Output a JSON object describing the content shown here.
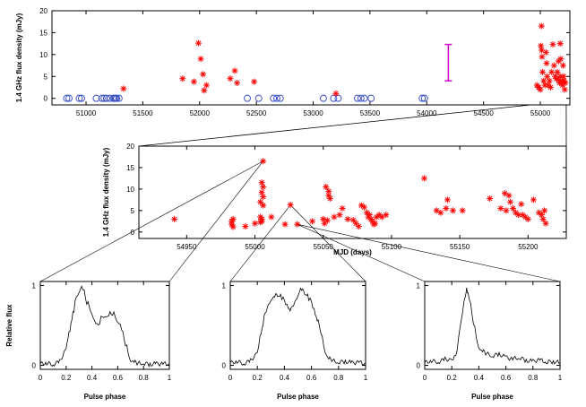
{
  "chart_data": [
    {
      "id": "top",
      "type": "scatter",
      "title": "",
      "xlabel": "",
      "ylabel": "1.4 GHz flux density (mJy)",
      "xlim": [
        50700,
        55260
      ],
      "ylim": [
        -1.5,
        20
      ],
      "xticks": [
        51000,
        51500,
        52000,
        52500,
        53000,
        53500,
        54000,
        54500,
        55000
      ],
      "yticks": [
        0,
        5,
        10,
        15,
        20
      ],
      "non_detections": [
        50830,
        50850,
        50940,
        50960,
        51090,
        51140,
        51160,
        51180,
        51210,
        51240,
        51250,
        51260,
        51270,
        51290,
        52420,
        52520,
        52650,
        52680,
        52710,
        53090,
        53180,
        53220,
        53390,
        53420,
        53450,
        53510,
        53960,
        53980
      ],
      "detections": [
        [
          51330,
          2.2
        ],
        [
          51850,
          4.5
        ],
        [
          51950,
          3.8
        ],
        [
          51990,
          12.6
        ],
        [
          52010,
          9.0
        ],
        [
          52030,
          5.5
        ],
        [
          52040,
          1.8
        ],
        [
          52060,
          3.0
        ],
        [
          52270,
          4.5
        ],
        [
          52310,
          6.3
        ],
        [
          52330,
          3.5
        ],
        [
          52480,
          3.8
        ],
        [
          53200,
          1.1
        ],
        [
          54970,
          3.0
        ],
        [
          54985,
          2.5
        ],
        [
          55000,
          2.0
        ],
        [
          55005,
          12.0
        ],
        [
          55010,
          16.5
        ],
        [
          55012,
          11.0
        ],
        [
          55015,
          9.5
        ],
        [
          55020,
          6.0
        ],
        [
          55030,
          4.0
        ],
        [
          55040,
          3.0
        ],
        [
          55050,
          10.5
        ],
        [
          55055,
          8.0
        ],
        [
          55060,
          5.0
        ],
        [
          55070,
          3.0
        ],
        [
          55080,
          4.0
        ],
        [
          55090,
          2.5
        ],
        [
          55100,
          6.0
        ],
        [
          55110,
          12.3
        ],
        [
          55120,
          7.5
        ],
        [
          55130,
          5.0
        ],
        [
          55140,
          4.5
        ],
        [
          55150,
          6.0
        ],
        [
          55160,
          8.5
        ],
        [
          55170,
          3.5
        ],
        [
          55175,
          5.0
        ],
        [
          55180,
          9.0
        ],
        [
          55190,
          4.0
        ],
        [
          55195,
          3.0
        ],
        [
          55200,
          7.5
        ],
        [
          55205,
          5.0
        ],
        [
          55210,
          4.0
        ],
        [
          55215,
          2.0
        ],
        [
          55220,
          3.5
        ],
        [
          55175,
          12.5
        ],
        [
          55160,
          4.2
        ]
      ],
      "error_bar": {
        "x": 54190,
        "low": 4.0,
        "high": 12.3
      }
    },
    {
      "id": "zoom",
      "type": "scatter",
      "title": "",
      "xlabel": "MJD (days)",
      "ylabel": "1.4 GHz flux density (mJy)",
      "xlim": [
        54915,
        55228
      ],
      "ylim": [
        -1.5,
        20
      ],
      "xticks": [
        54950,
        55000,
        55050,
        55100,
        55150,
        55200
      ],
      "yticks": [
        0,
        5,
        10,
        15,
        20
      ],
      "detections": [
        [
          54941,
          3.0
        ],
        [
          54983,
          2.5
        ],
        [
          54983,
          1.8
        ],
        [
          54984,
          3.0
        ],
        [
          54984,
          1.2
        ],
        [
          54993,
          1.3
        ],
        [
          55000,
          2.0
        ],
        [
          55004,
          3.5
        ],
        [
          55005,
          2.5
        ],
        [
          55006,
          16.5
        ],
        [
          55005,
          11.5
        ],
        [
          55006,
          10.5
        ],
        [
          55005,
          9.2
        ],
        [
          55006,
          8.2
        ],
        [
          55004,
          7.0
        ],
        [
          55006,
          6.2
        ],
        [
          55005,
          3.0
        ],
        [
          55004,
          2.3
        ],
        [
          55012,
          3.5
        ],
        [
          55022,
          1.8
        ],
        [
          55026,
          6.3
        ],
        [
          55031,
          1.8
        ],
        [
          55042,
          2.5
        ],
        [
          55050,
          3.0
        ],
        [
          55051,
          2.0
        ],
        [
          55052,
          10.5
        ],
        [
          55054,
          9.5
        ],
        [
          55054,
          8.5
        ],
        [
          55055,
          7.8
        ],
        [
          55053,
          2.7
        ],
        [
          55058,
          3.5
        ],
        [
          55062,
          4.0
        ],
        [
          55064,
          5.5
        ],
        [
          55068,
          3.0
        ],
        [
          55072,
          2.8
        ],
        [
          55074,
          2.0
        ],
        [
          55076,
          1.3
        ],
        [
          55078,
          6.2
        ],
        [
          55080,
          5.8
        ],
        [
          55082,
          4.5
        ],
        [
          55083,
          3.5
        ],
        [
          55084,
          4.0
        ],
        [
          55085,
          3.0
        ],
        [
          55086,
          2.5
        ],
        [
          55087,
          1.8
        ],
        [
          55088,
          2.0
        ],
        [
          55089,
          3.5
        ],
        [
          55091,
          4.0
        ],
        [
          55093,
          3.5
        ],
        [
          55096,
          4.0
        ],
        [
          55124,
          12.5
        ],
        [
          55133,
          5.0
        ],
        [
          55136,
          4.5
        ],
        [
          55140,
          5.5
        ],
        [
          55141,
          7.5
        ],
        [
          55145,
          5.0
        ],
        [
          55152,
          5.0
        ],
        [
          55172,
          7.8
        ],
        [
          55180,
          5.5
        ],
        [
          55183,
          9.0
        ],
        [
          55184,
          5.0
        ],
        [
          55186,
          8.5
        ],
        [
          55187,
          7.0
        ],
        [
          55189,
          5.5
        ],
        [
          55191,
          4.5
        ],
        [
          55193,
          4.0
        ],
        [
          55195,
          6.5
        ],
        [
          55196,
          4.0
        ],
        [
          55198,
          3.5
        ],
        [
          55200,
          3.0
        ],
        [
          55204,
          7.5
        ],
        [
          55208,
          4.5
        ],
        [
          55210,
          4.0
        ],
        [
          55211,
          3.0
        ],
        [
          55212,
          5.0
        ],
        [
          55213,
          2.0
        ]
      ]
    },
    {
      "id": "profile-1",
      "type": "line",
      "xlabel": "Pulse phase",
      "ylabel": "Relative flux",
      "xlim": [
        0,
        1
      ],
      "ylim": [
        -0.05,
        1.05
      ],
      "xticks": [
        0,
        0.2,
        0.4,
        0.6,
        0.8,
        1
      ],
      "yticks": [
        0,
        1
      ],
      "peak_from": [
        55006,
        16.5
      ],
      "x": [
        0,
        0.05,
        0.1,
        0.15,
        0.2,
        0.23,
        0.26,
        0.28,
        0.3,
        0.32,
        0.34,
        0.36,
        0.38,
        0.4,
        0.42,
        0.44,
        0.46,
        0.48,
        0.5,
        0.52,
        0.54,
        0.56,
        0.58,
        0.6,
        0.62,
        0.64,
        0.66,
        0.68,
        0.7,
        0.72,
        0.75,
        0.8,
        0.85,
        0.9,
        0.95,
        1.0
      ],
      "y": [
        0.02,
        0.03,
        0.01,
        0.05,
        0.2,
        0.45,
        0.7,
        0.85,
        0.92,
        0.98,
        0.92,
        0.8,
        0.72,
        0.65,
        0.55,
        0.5,
        0.55,
        0.6,
        0.62,
        0.6,
        0.65,
        0.66,
        0.6,
        0.55,
        0.5,
        0.4,
        0.28,
        0.15,
        0.06,
        0.04,
        0.02,
        0.03,
        0.01,
        0.02,
        0.02,
        0.02
      ]
    },
    {
      "id": "profile-2",
      "type": "line",
      "xlabel": "Pulse phase",
      "ylabel": "",
      "xlim": [
        0,
        1
      ],
      "ylim": [
        -0.05,
        1.05
      ],
      "xticks": [
        0,
        0.2,
        0.4,
        0.6,
        0.8,
        1
      ],
      "yticks": [
        0,
        1
      ],
      "peak_from": [
        55026,
        6.3
      ],
      "x": [
        0,
        0.05,
        0.1,
        0.15,
        0.2,
        0.22,
        0.25,
        0.28,
        0.3,
        0.32,
        0.35,
        0.38,
        0.4,
        0.42,
        0.45,
        0.48,
        0.5,
        0.52,
        0.55,
        0.58,
        0.6,
        0.62,
        0.65,
        0.68,
        0.7,
        0.72,
        0.75,
        0.8,
        0.85,
        0.9,
        0.95,
        1.0
      ],
      "y": [
        0.03,
        0.05,
        0.02,
        0.06,
        0.15,
        0.35,
        0.6,
        0.75,
        0.82,
        0.85,
        0.88,
        0.86,
        0.8,
        0.75,
        0.7,
        0.8,
        0.88,
        0.95,
        0.9,
        0.85,
        0.78,
        0.7,
        0.55,
        0.35,
        0.18,
        0.08,
        0.06,
        0.04,
        0.05,
        0.03,
        0.04,
        0.02
      ]
    },
    {
      "id": "profile-3",
      "type": "line",
      "xlabel": "Pulse phase",
      "ylabel": "",
      "xlim": [
        0,
        1
      ],
      "ylim": [
        -0.05,
        1.05
      ],
      "xticks": [
        0,
        0.2,
        0.4,
        0.6,
        0.8,
        1
      ],
      "yticks": [
        0,
        1
      ],
      "peak_from": [
        55031,
        1.8
      ],
      "x": [
        0,
        0.05,
        0.1,
        0.15,
        0.2,
        0.22,
        0.24,
        0.26,
        0.28,
        0.3,
        0.31,
        0.32,
        0.34,
        0.36,
        0.38,
        0.4,
        0.42,
        0.45,
        0.5,
        0.55,
        0.6,
        0.65,
        0.7,
        0.75,
        0.8,
        0.85,
        0.9,
        0.95,
        1.0
      ],
      "y": [
        0.03,
        0.06,
        0.04,
        0.08,
        0.06,
        0.1,
        0.2,
        0.45,
        0.7,
        0.85,
        0.98,
        0.9,
        0.75,
        0.55,
        0.35,
        0.22,
        0.18,
        0.15,
        0.12,
        0.14,
        0.1,
        0.08,
        0.1,
        0.06,
        0.05,
        0.07,
        0.04,
        0.05,
        0.03
      ]
    }
  ]
}
